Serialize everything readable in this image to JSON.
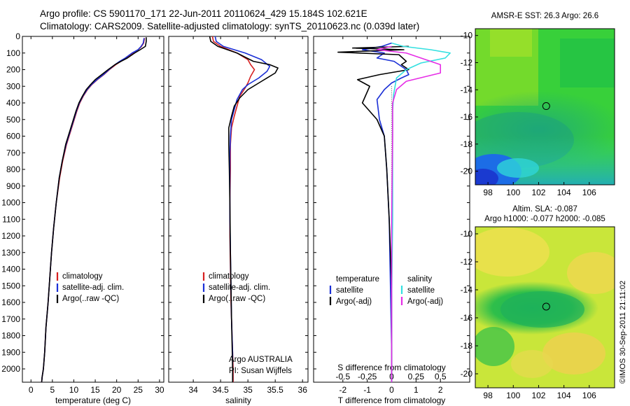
{
  "header": {
    "line1": "Argo profile: CS 5901170_171 22-Jun-2011 20110624_429 15.184S 102.621E",
    "line2": "Climatology: CARS2009. Satellite-adjusted climatology: synTS_20110623.nc (0.039d later)"
  },
  "credit": "©IMOS 30-Sep-2011 21:11:02",
  "colors": {
    "climatology": "#d62020",
    "satellite": "#1a2fd6",
    "argo": "#000000",
    "sat_salinity": "#33e0e0",
    "argo_salinity": "#e62de6"
  },
  "depth_axis": {
    "ticks": [
      0,
      100,
      200,
      300,
      400,
      500,
      600,
      700,
      800,
      900,
      1000,
      1100,
      1200,
      1300,
      1400,
      1500,
      1600,
      1700,
      1800,
      1900,
      2000
    ]
  },
  "chart_data": [
    {
      "id": "temperature",
      "type": "line",
      "xlabel": "temperature (deg C)",
      "xlim": [
        -2,
        31
      ],
      "ylim": [
        2080,
        0
      ],
      "xticks": [
        0,
        5,
        10,
        15,
        20,
        25,
        30
      ],
      "legend": [
        "climatology",
        "satellite-adj. clim.",
        "Argo(..raw -QC)"
      ],
      "series": [
        {
          "name": "climatology",
          "color": "#d62020",
          "x": [
            26.5,
            26.3,
            25.8,
            25.0,
            23.8,
            22.3,
            21.0,
            19.8,
            18.3,
            17.0,
            15.5,
            14.2,
            13.2,
            12.2,
            11.4,
            10.7,
            10.1,
            9.5,
            8.9,
            8.3,
            7.4,
            6.7,
            5.9,
            5.3,
            4.8,
            4.4,
            4.0,
            3.5,
            3.2,
            2.9,
            2.6,
            2.5
          ],
          "y": [
            10,
            40,
            60,
            80,
            100,
            130,
            150,
            170,
            200,
            230,
            260,
            290,
            320,
            360,
            400,
            450,
            500,
            550,
            600,
            650,
            750,
            850,
            1000,
            1150,
            1300,
            1450,
            1600,
            1750,
            1900,
            2000,
            2050,
            2080
          ]
        },
        {
          "name": "satellite-adj. clim.",
          "color": "#1a2fd6",
          "x": [
            26.4,
            26.2,
            25.7,
            25.0,
            23.6,
            22.0,
            20.7,
            19.6,
            18.2,
            16.9,
            15.4,
            14.1,
            13.1,
            12.1,
            11.3,
            10.6,
            10.0,
            9.4,
            8.8,
            8.2,
            7.3,
            6.6,
            5.9,
            5.3,
            4.8,
            4.4,
            4.0,
            3.5,
            3.2,
            2.9,
            2.6,
            2.5
          ],
          "y": [
            10,
            40,
            60,
            80,
            100,
            130,
            150,
            170,
            200,
            230,
            260,
            290,
            320,
            360,
            400,
            450,
            500,
            550,
            600,
            650,
            750,
            850,
            1000,
            1150,
            1300,
            1450,
            1600,
            1750,
            1900,
            2000,
            2050,
            2080
          ]
        },
        {
          "name": "Argo(..raw -QC)",
          "color": "#000000",
          "x": [
            26.9,
            26.9,
            26.7,
            25.5,
            24.2,
            22.5,
            21.0,
            19.6,
            18.0,
            16.5,
            15.0,
            13.9,
            12.9,
            12.0,
            11.2,
            10.5,
            9.9,
            9.3,
            8.7,
            8.1,
            7.3,
            6.6,
            5.9,
            5.3,
            4.8,
            4.4,
            4.0,
            3.5,
            3.2,
            2.9,
            2.6,
            2.5
          ],
          "y": [
            5,
            30,
            60,
            80,
            100,
            130,
            150,
            170,
            200,
            230,
            260,
            290,
            320,
            360,
            400,
            450,
            500,
            550,
            600,
            650,
            750,
            850,
            1000,
            1150,
            1300,
            1450,
            1600,
            1750,
            1900,
            2000,
            2050,
            2080
          ]
        }
      ]
    },
    {
      "id": "salinity",
      "type": "line",
      "xlabel": "salinity",
      "xlim": [
        33.55,
        36.1
      ],
      "ylim": [
        2080,
        0
      ],
      "xticks": [
        34,
        34.5,
        35,
        35.5,
        36
      ],
      "xtick_labels": [
        "34",
        "34.5",
        "35",
        "35.5",
        "36"
      ],
      "legend": [
        "climatology",
        "satellite-adj. clim.",
        "Argo(..raw -QC)"
      ],
      "annotation": [
        "Argo AUSTRALIA",
        "PI: Susan Wijffels"
      ],
      "series": [
        {
          "name": "climatology",
          "color": "#d62020",
          "x": [
            34.35,
            34.37,
            34.5,
            34.8,
            35.0,
            35.05,
            35.12,
            35.05,
            35.0,
            34.95,
            34.85,
            34.8,
            34.75,
            34.7,
            34.68,
            34.68,
            34.67,
            34.67,
            34.68,
            34.69,
            34.7,
            34.71,
            34.72,
            34.73,
            34.73
          ],
          "y": [
            0,
            30,
            60,
            100,
            140,
            170,
            200,
            240,
            280,
            310,
            360,
            420,
            480,
            550,
            650,
            800,
            1000,
            1200,
            1400,
            1600,
            1700,
            1800,
            1900,
            2000,
            2080
          ]
        },
        {
          "name": "satellite-adj. clim.",
          "color": "#1a2fd6",
          "x": [
            34.4,
            34.42,
            34.55,
            34.95,
            35.25,
            35.4,
            35.35,
            35.2,
            35.0,
            34.9,
            34.8,
            34.75,
            34.7,
            34.68,
            34.67,
            34.67,
            34.67,
            34.68,
            34.69,
            34.7,
            34.71,
            34.72,
            34.72,
            34.72
          ],
          "y": [
            0,
            30,
            60,
            100,
            140,
            180,
            210,
            250,
            290,
            320,
            380,
            440,
            500,
            600,
            700,
            900,
            1100,
            1300,
            1500,
            1700,
            1800,
            1900,
            2000,
            2080
          ]
        },
        {
          "name": "Argo(..raw -QC)",
          "color": "#000000",
          "x": [
            34.3,
            34.32,
            34.45,
            34.8,
            35.1,
            35.4,
            35.55,
            35.5,
            35.25,
            35.0,
            34.85,
            34.75,
            34.7,
            34.65,
            34.65,
            34.66,
            34.67,
            34.68,
            34.69,
            34.7,
            34.71,
            34.72,
            34.72
          ],
          "y": [
            0,
            30,
            60,
            100,
            150,
            170,
            190,
            220,
            270,
            320,
            370,
            420,
            480,
            550,
            650,
            800,
            1000,
            1300,
            1500,
            1700,
            1850,
            2000,
            2080
          ]
        }
      ]
    },
    {
      "id": "difference",
      "type": "line",
      "xlabel": "T difference from climatology",
      "xlabel_top": "S difference from climatology",
      "xlim": [
        -3.2,
        3.2
      ],
      "ylim": [
        2080,
        0
      ],
      "xticks": [
        -2,
        -1,
        0,
        1,
        2
      ],
      "sticks": [
        -0.5,
        -0.25,
        0,
        0.25,
        0.5
      ],
      "stick_labels": [
        "-0.5",
        "-0.25",
        "0",
        "0.25",
        "0.5"
      ],
      "legend_temperature": {
        "title": "temperature",
        "items": [
          "satellite",
          "Argo(-adj)"
        ]
      },
      "legend_salinity": {
        "title": "salinity",
        "items": [
          "satellite",
          "Argo(-adj)"
        ]
      },
      "series": [
        {
          "name": "T satellite",
          "color": "#1a2fd6",
          "x": [
            0,
            -0.4,
            -1.2,
            -0.3,
            -0.6,
            0.1,
            0.3,
            0.6,
            0.7,
            0.4,
            0,
            -0.3,
            -0.6,
            -0.5,
            -0.3,
            -0.2,
            -0.1,
            -0.05,
            0,
            0
          ],
          "y": [
            40,
            60,
            80,
            100,
            130,
            150,
            170,
            200,
            230,
            250,
            280,
            320,
            380,
            500,
            600,
            800,
            1100,
            1500,
            1900,
            2080
          ]
        },
        {
          "name": "T Argo(-adj)",
          "color": "#000000",
          "x": [
            0.7,
            -1.6,
            0.5,
            -2.2,
            0.3,
            0.6,
            0.4,
            0.7,
            -0.5,
            -1.4,
            -0.9,
            -1.2,
            -0.6,
            -0.3,
            -0.2,
            -0.1,
            0,
            0
          ],
          "y": [
            60,
            70,
            80,
            95,
            110,
            150,
            170,
            200,
            230,
            260,
            300,
            400,
            500,
            600,
            800,
            1100,
            1500,
            2080
          ]
        },
        {
          "name": "S satellite",
          "color": "#33e0e0",
          "x": [
            0,
            0.12,
            0.4,
            0.6,
            0.55,
            0.3,
            0.15,
            0.05,
            0.02,
            0.01,
            0.01,
            0.01,
            0,
            0
          ],
          "y": [
            40,
            60,
            80,
            100,
            130,
            160,
            200,
            250,
            350,
            450,
            700,
            1100,
            1600,
            2080
          ]
        },
        {
          "name": "S Argo(-adj)",
          "color": "#e62de6",
          "x": [
            0,
            -0.15,
            0.15,
            0.3,
            0.5,
            0.5,
            0.15,
            0.05,
            0.01,
            0.01,
            0,
            0
          ],
          "y": [
            60,
            80,
            100,
            130,
            170,
            220,
            270,
            320,
            400,
            600,
            1100,
            2080
          ]
        }
      ]
    }
  ],
  "maps": [
    {
      "id": "sst",
      "title_lines": [
        "AMSR-E SST: 26.3 Argo: 26.6"
      ],
      "xticks": [
        98,
        100,
        102,
        104,
        106
      ],
      "yticks": [
        -10,
        -12,
        -14,
        -16,
        -18,
        -20
      ],
      "xlim": [
        97,
        108
      ],
      "ylim": [
        -21,
        -9.5
      ],
      "marker": [
        102.6,
        -15.2
      ]
    },
    {
      "id": "sla",
      "title_lines": [
        "Altim. SLA: -0.087",
        "Argo h1000: -0.077 h2000: -0.085"
      ],
      "xticks": [
        98,
        100,
        102,
        104,
        106
      ],
      "yticks": [
        -10,
        -12,
        -14,
        -16,
        -18,
        -20
      ],
      "xlim": [
        97,
        108
      ],
      "ylim": [
        -21,
        -9.5
      ],
      "marker": [
        102.6,
        -15.2
      ]
    }
  ]
}
